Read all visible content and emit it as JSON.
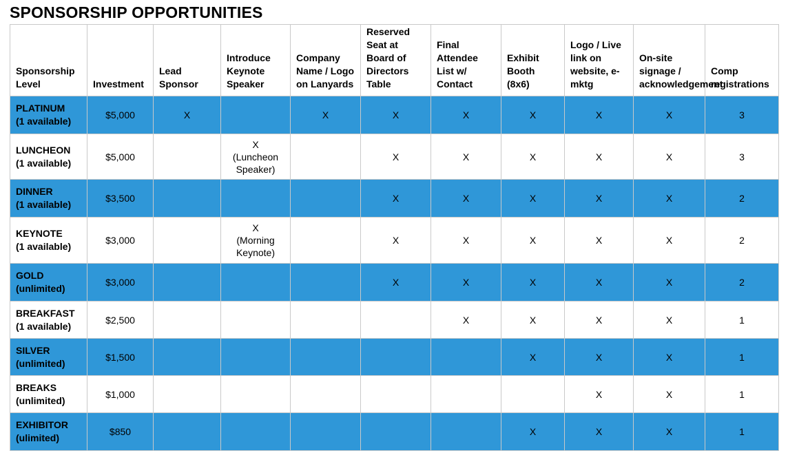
{
  "title": "SPONSORSHIP OPPORTUNITIES",
  "columns": [
    "Sponsorship Level",
    "Investment",
    "Lead Sponsor",
    "Introduce Keynote Speaker",
    "Company Name / Logo on Lanyards",
    "Reserved Seat at Board of Directors Table",
    "Final Attendee List w/ Contact",
    "Exhibit Booth (8x6)",
    "Logo / Live link on website, e-mktg",
    "On-site signage / acknowledgement",
    "Comp registrations"
  ],
  "rows": [
    {
      "level": "PLATINUM",
      "availability": "(1 available)",
      "investment": "$5,000",
      "lead_sponsor": "X",
      "keynote": "",
      "keynote_note": "",
      "lanyards": "X",
      "board_seat": "X",
      "attendee_list": "X",
      "booth": "X",
      "website": "X",
      "signage": "X",
      "comp": "3"
    },
    {
      "level": "LUNCHEON",
      "availability": "(1 available)",
      "investment": "$5,000",
      "lead_sponsor": "",
      "keynote": "X",
      "keynote_note": "(Luncheon Speaker)",
      "lanyards": "",
      "board_seat": "X",
      "attendee_list": "X",
      "booth": "X",
      "website": "X",
      "signage": "X",
      "comp": "3"
    },
    {
      "level": "DINNER",
      "availability": "(1 available)",
      "investment": "$3,500",
      "lead_sponsor": "",
      "keynote": "",
      "keynote_note": "",
      "lanyards": "",
      "board_seat": "X",
      "attendee_list": "X",
      "booth": "X",
      "website": "X",
      "signage": "X",
      "comp": "2"
    },
    {
      "level": "KEYNOTE",
      "availability": "(1 available)",
      "investment": "$3,000",
      "lead_sponsor": "",
      "keynote": "X",
      "keynote_note": "(Morning Keynote)",
      "lanyards": "",
      "board_seat": "X",
      "attendee_list": "X",
      "booth": "X",
      "website": "X",
      "signage": "X",
      "comp": "2"
    },
    {
      "level": "GOLD",
      "availability": "(unlimited)",
      "investment": "$3,000",
      "lead_sponsor": "",
      "keynote": "",
      "keynote_note": "",
      "lanyards": "",
      "board_seat": "X",
      "attendee_list": "X",
      "booth": "X",
      "website": "X",
      "signage": "X",
      "comp": "2"
    },
    {
      "level": "BREAKFAST",
      "availability": "(1 available)",
      "investment": "$2,500",
      "lead_sponsor": "",
      "keynote": "",
      "keynote_note": "",
      "lanyards": "",
      "board_seat": "",
      "attendee_list": "X",
      "booth": "X",
      "website": "X",
      "signage": "X",
      "comp": "1"
    },
    {
      "level": "SILVER",
      "availability": "(unlimited)",
      "investment": "$1,500",
      "lead_sponsor": "",
      "keynote": "",
      "keynote_note": "",
      "lanyards": "",
      "board_seat": "",
      "attendee_list": "",
      "booth": "X",
      "website": "X",
      "signage": "X",
      "comp": "1"
    },
    {
      "level": "BREAKS",
      "availability": "(unlimited)",
      "investment": "$1,000",
      "lead_sponsor": "",
      "keynote": "",
      "keynote_note": "",
      "lanyards": "",
      "board_seat": "",
      "attendee_list": "",
      "booth": "",
      "website": "X",
      "signage": "X",
      "comp": "1"
    },
    {
      "level": "EXHIBITOR",
      "availability": "(ulimited)",
      "investment": "$850",
      "lead_sponsor": "",
      "keynote": "",
      "keynote_note": "",
      "lanyards": "",
      "board_seat": "",
      "attendee_list": "",
      "booth": "X",
      "website": "X",
      "signage": "X",
      "comp": "1"
    }
  ],
  "colors": {
    "highlight_row": "#2f97d8",
    "plain_row": "#ffffff",
    "grid": "#c9c9c9"
  }
}
